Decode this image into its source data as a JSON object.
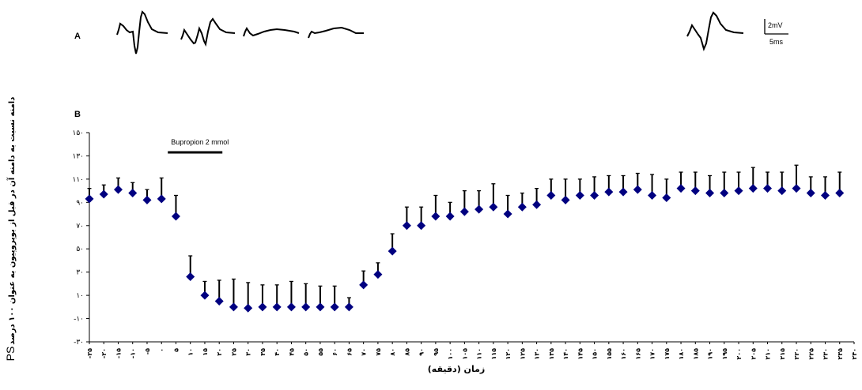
{
  "panel_a": {
    "label": "A",
    "scale_bar": {
      "amplitude": "2mV",
      "time": "5ms"
    }
  },
  "chart_data": {
    "type": "scatter",
    "panel_label": "B",
    "ylabel_prefix": "PS",
    "ylabel_text": "دامنه  نسبت به دامنه آن در قبل از بوپروپیون به عنوان ۱۰۰ درصد",
    "xlabel": "زمان (دقیقه)",
    "ylim": [
      -30,
      150
    ],
    "yticks": [
      -30,
      -10,
      10,
      30,
      50,
      70,
      90,
      110,
      130,
      150
    ],
    "ytick_labels": [
      "-۳۰",
      "-۱۰",
      "۱۰",
      "۳۰",
      "۵۰",
      "۷۰",
      "۹۰",
      "۱۱۰",
      "۱۳۰",
      "۱۵۰"
    ],
    "x": [
      -25,
      -20,
      -15,
      -10,
      -5,
      0,
      5,
      10,
      15,
      20,
      25,
      30,
      35,
      40,
      45,
      50,
      55,
      60,
      65,
      70,
      75,
      80,
      85,
      90,
      95,
      100,
      105,
      110,
      115,
      120,
      125,
      130,
      135,
      140,
      145,
      150,
      155,
      160,
      165,
      170,
      175,
      180,
      185,
      190,
      195,
      200,
      205,
      210,
      215,
      220,
      225,
      230,
      235
    ],
    "xlim": [
      -25,
      240
    ],
    "xtick_labels": [
      "-۲۵",
      "-۲۰",
      "-۱۵",
      "-۱۰",
      "-۵",
      "۰",
      "۵",
      "۱۰",
      "۱۵",
      "۲۰",
      "۲۵",
      "۳۰",
      "۳۵",
      "۴۰",
      "۴۵",
      "۵۰",
      "۵۵",
      "۶۰",
      "۶۵",
      "۷۰",
      "۷۵",
      "۸۰",
      "۸۵",
      "۹۰",
      "۹۵",
      "۱۰۰",
      "۱۰۵",
      "۱۱۰",
      "۱۱۵",
      "۱۲۰",
      "۱۲۵",
      "۱۳۰",
      "۱۳۵",
      "۱۴۰",
      "۱۴۵",
      "۱۵۰",
      "۱۵۵",
      "۱۶۰",
      "۱۶۵",
      "۱۷۰",
      "۱۷۵",
      "۱۸۰",
      "۱۸۵",
      "۱۹۰",
      "۱۹۵",
      "۲۰۰",
      "۲۰۵",
      "۲۱۰",
      "۲۱۵",
      "۲۲۰",
      "۲۲۵",
      "۲۳۰",
      "۲۳۵",
      "۲۴۰"
    ],
    "series": [
      {
        "values": [
          93,
          97,
          101,
          98,
          92,
          93,
          78,
          26,
          10,
          5,
          0,
          -1,
          0,
          0,
          0,
          0,
          0,
          0,
          0,
          19,
          28,
          48,
          70,
          70,
          78,
          78,
          82,
          84,
          86,
          80,
          86,
          88,
          96,
          92,
          96,
          96,
          99,
          99,
          101,
          96,
          94,
          102,
          100,
          98,
          98,
          100,
          102,
          102,
          100,
          102,
          98,
          96,
          98
        ],
        "errors": [
          9,
          8,
          10,
          9,
          9,
          18,
          18,
          18,
          12,
          18,
          24,
          22,
          19,
          19,
          22,
          20,
          18,
          18,
          8,
          12,
          10,
          15,
          16,
          16,
          18,
          12,
          18,
          16,
          20,
          16,
          12,
          14,
          14,
          18,
          14,
          16,
          14,
          14,
          14,
          18,
          16,
          14,
          16,
          15,
          18,
          16,
          18,
          14,
          16,
          20,
          14,
          16,
          18
        ]
      }
    ],
    "color": "#000080",
    "errorbar_color": "#000000",
    "annotation": {
      "text": "Bupropion 2 mmol",
      "x_start": 0,
      "x_end": 20,
      "y": 133
    }
  }
}
